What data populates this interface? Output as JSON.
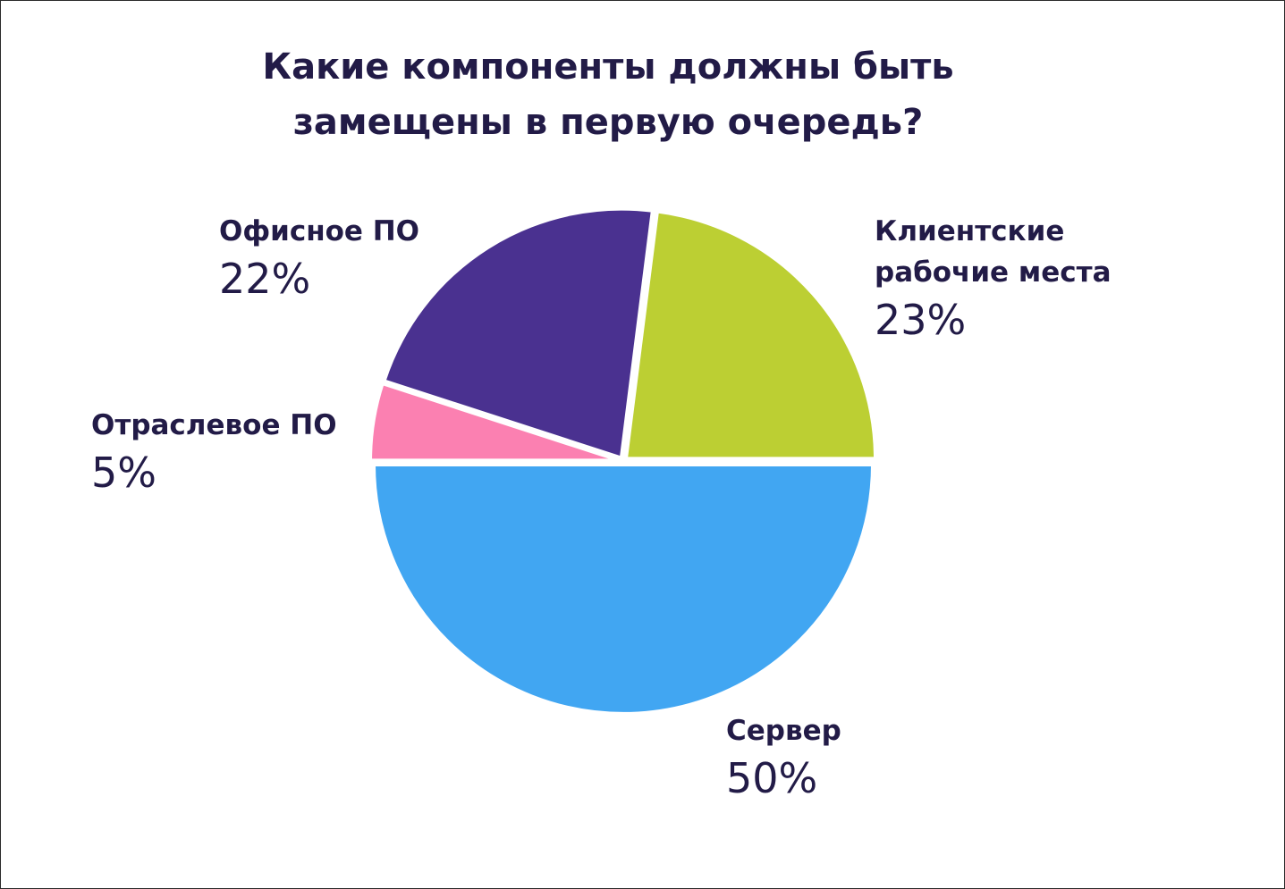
{
  "title_lines": [
    "Какие компоненты должны быть",
    "замещены в первую очередь?"
  ],
  "chart_data": {
    "type": "pie",
    "title": "Какие компоненты должны быть замещены в первую очередь?",
    "slices": [
      {
        "label": "Клиентские рабочие места",
        "label_lines": [
          "Клиентские",
          "рабочие места"
        ],
        "value": 23,
        "value_label": "23%",
        "color": "#bccf33"
      },
      {
        "label": "Сервер",
        "label_lines": [
          "Сервер"
        ],
        "value": 50,
        "value_label": "50%",
        "color": "#41a6f2"
      },
      {
        "label": "Отраслевое ПО",
        "label_lines": [
          "Отраслевое ПО"
        ],
        "value": 5,
        "value_label": "5%",
        "color": "#fb80b1"
      },
      {
        "label": "Офисное ПО",
        "label_lines": [
          "Офисное ПО"
        ],
        "value": 22,
        "value_label": "22%",
        "color": "#4a3190"
      }
    ]
  }
}
